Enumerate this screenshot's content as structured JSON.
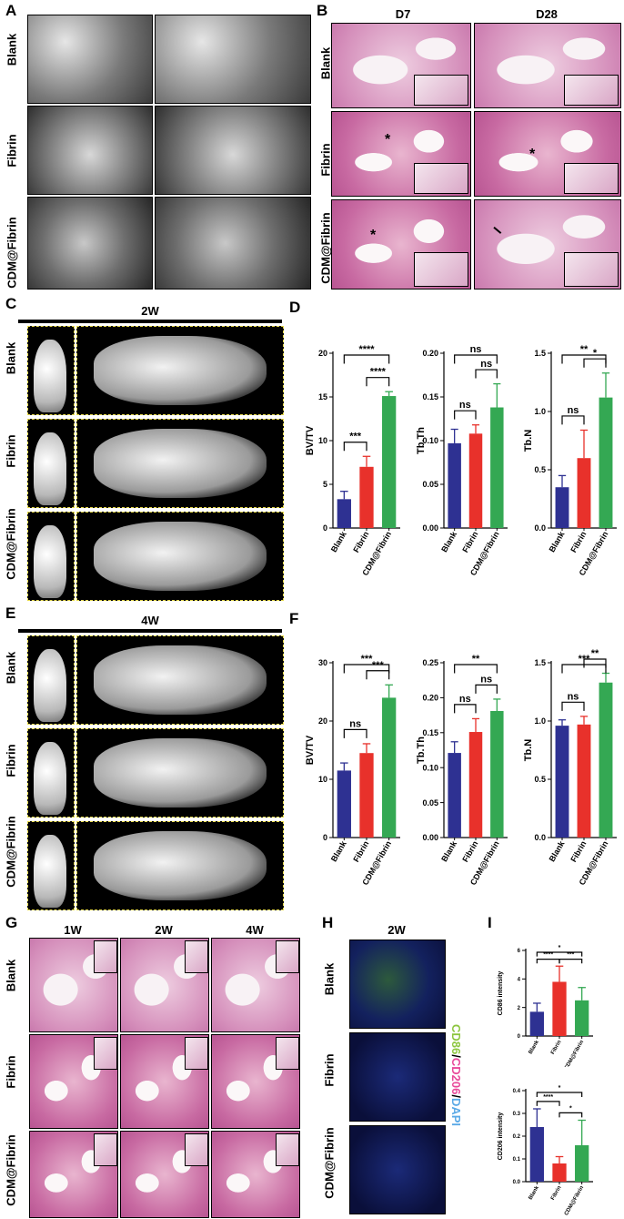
{
  "panels": {
    "A": {
      "letter": "A",
      "rows": [
        "Blank",
        "Fibrin",
        "CDM@Fibrin"
      ]
    },
    "B": {
      "letter": "B",
      "cols": [
        "D7",
        "D28"
      ],
      "rows": [
        "Blank",
        "Fibrin",
        "CDM@Fibrin"
      ],
      "marks": [
        "*",
        "*",
        "*"
      ]
    },
    "C": {
      "letter": "C",
      "header": "2W",
      "rows": [
        "Blank",
        "Fibrin",
        "CDM@Fibrin"
      ]
    },
    "E": {
      "letter": "E",
      "header": "4W",
      "rows": [
        "Blank",
        "Fibrin",
        "CDM@Fibrin"
      ]
    },
    "G": {
      "letter": "G",
      "cols": [
        "1W",
        "2W",
        "4W"
      ],
      "rows": [
        "Blank",
        "Fibrin",
        "CDM@Fibrin"
      ]
    },
    "H": {
      "letter": "H",
      "header": "2W",
      "rows": [
        "Blank",
        "Fibrin",
        "CDM@Fibrin"
      ],
      "stain_label": {
        "p1": "CD86",
        "sep1": "/",
        "p2": "CD206",
        "sep2": "/",
        "p3": "DAPI"
      }
    },
    "D": {
      "letter": "D"
    },
    "F": {
      "letter": "F"
    },
    "I": {
      "letter": "I"
    }
  },
  "colors": {
    "Blank": "#2e3192",
    "Fibrin": "#e8312b",
    "CDM@Fibrin": "#34a853",
    "cd86": "#8dc63f",
    "cd206": "#e84a9a",
    "dapi": "#5aa9e6"
  },
  "chart_data": [
    {
      "id": "D1",
      "type": "bar",
      "categories": [
        "Blank",
        "Fibrin",
        "CDM@Fibrin"
      ],
      "values": [
        3.3,
        7.0,
        15.1
      ],
      "errors": [
        0.9,
        1.2,
        0.5
      ],
      "ylabel": "BV/TV",
      "ylim": [
        0,
        20
      ],
      "yticks": [
        0,
        5,
        10,
        15,
        20
      ],
      "sig": [
        {
          "a": 0,
          "b": 1,
          "label": "***"
        },
        {
          "a": 1,
          "b": 2,
          "label": "****"
        },
        {
          "a": 0,
          "b": 2,
          "label": "****"
        }
      ]
    },
    {
      "id": "D2",
      "type": "bar",
      "categories": [
        "Blank",
        "Fibrin",
        "CDM@Fibrin"
      ],
      "values": [
        0.097,
        0.108,
        0.138
      ],
      "errors": [
        0.016,
        0.01,
        0.027
      ],
      "ylabel": "Tb.Th",
      "ylim": [
        0,
        0.2
      ],
      "yticks": [
        0.0,
        0.05,
        0.1,
        0.15,
        0.2
      ],
      "yfmt": 2,
      "sig": [
        {
          "a": 0,
          "b": 1,
          "label": "ns"
        },
        {
          "a": 1,
          "b": 2,
          "label": "ns"
        },
        {
          "a": 0,
          "b": 2,
          "label": "ns"
        }
      ]
    },
    {
      "id": "D3",
      "type": "bar",
      "categories": [
        "Blank",
        "Fibrin",
        "CDM@Fibrin"
      ],
      "values": [
        0.35,
        0.6,
        1.12
      ],
      "errors": [
        0.1,
        0.24,
        0.21
      ],
      "ylabel": "Tb.N",
      "ylim": [
        0,
        1.5
      ],
      "yticks": [
        0.0,
        0.5,
        1.0,
        1.5
      ],
      "yfmt": 1,
      "sig": [
        {
          "a": 0,
          "b": 1,
          "label": "ns"
        },
        {
          "a": 1,
          "b": 2,
          "label": "*"
        },
        {
          "a": 0,
          "b": 2,
          "label": "**"
        }
      ]
    },
    {
      "id": "F1",
      "type": "bar",
      "categories": [
        "Blank",
        "Fibrin",
        "CDM@Fibrin"
      ],
      "values": [
        11.5,
        14.5,
        24.0
      ],
      "errors": [
        1.3,
        1.6,
        2.2
      ],
      "ylabel": "BV/TV",
      "ylim": [
        0,
        30
      ],
      "yticks": [
        0,
        10,
        20,
        30
      ],
      "sig": [
        {
          "a": 0,
          "b": 1,
          "label": "ns"
        },
        {
          "a": 1,
          "b": 2,
          "label": "***"
        },
        {
          "a": 0,
          "b": 2,
          "label": "***"
        }
      ]
    },
    {
      "id": "F2",
      "type": "bar",
      "categories": [
        "Blank",
        "Fibrin",
        "CDM@Fibrin"
      ],
      "values": [
        0.121,
        0.151,
        0.181
      ],
      "errors": [
        0.016,
        0.019,
        0.017
      ],
      "ylabel": "Tb.Th",
      "ylim": [
        0,
        0.25
      ],
      "yticks": [
        0.0,
        0.05,
        0.1,
        0.15,
        0.2,
        0.25
      ],
      "yfmt": 2,
      "sig": [
        {
          "a": 0,
          "b": 1,
          "label": "ns"
        },
        {
          "a": 1,
          "b": 2,
          "label": "ns"
        },
        {
          "a": 0,
          "b": 2,
          "label": "**"
        }
      ]
    },
    {
      "id": "F3",
      "type": "bar",
      "categories": [
        "Blank",
        "Fibrin",
        "CDM@Fibrin"
      ],
      "values": [
        0.96,
        0.97,
        1.33
      ],
      "errors": [
        0.05,
        0.07,
        0.08
      ],
      "ylabel": "Tb.N",
      "ylim": [
        0,
        1.5
      ],
      "yticks": [
        0.0,
        0.5,
        1.0,
        1.5
      ],
      "yfmt": 1,
      "sig": [
        {
          "a": 0,
          "b": 1,
          "label": "ns"
        },
        {
          "a": 1,
          "b": 2,
          "label": "**"
        },
        {
          "a": 0,
          "b": 2,
          "label": "***"
        }
      ]
    },
    {
      "id": "I1",
      "type": "bar",
      "categories": [
        "Blank",
        "Fibrin",
        "CDM@Fibrin"
      ],
      "values": [
        1.7,
        3.8,
        2.5
      ],
      "errors": [
        0.6,
        1.1,
        0.9
      ],
      "ylabel": "CD86 intensity",
      "ylim": [
        0,
        6
      ],
      "yticks": [
        0,
        2,
        4,
        6
      ],
      "sig": [
        {
          "a": 0,
          "b": 1,
          "label": "****"
        },
        {
          "a": 1,
          "b": 2,
          "label": "***"
        },
        {
          "a": 0,
          "b": 2,
          "label": "*"
        }
      ]
    },
    {
      "id": "I2",
      "type": "bar",
      "categories": [
        "Blank",
        "Fibrin",
        "CDM@Fibrin"
      ],
      "values": [
        0.24,
        0.08,
        0.16
      ],
      "errors": [
        0.08,
        0.03,
        0.11
      ],
      "ylabel": "CD206 intensity",
      "ylim": [
        0,
        0.4
      ],
      "yticks": [
        0.0,
        0.1,
        0.2,
        0.3,
        0.4
      ],
      "yfmt": 1,
      "sig": [
        {
          "a": 0,
          "b": 1,
          "label": "****"
        },
        {
          "a": 1,
          "b": 2,
          "label": "*"
        },
        {
          "a": 0,
          "b": 2,
          "label": "*"
        }
      ]
    }
  ]
}
